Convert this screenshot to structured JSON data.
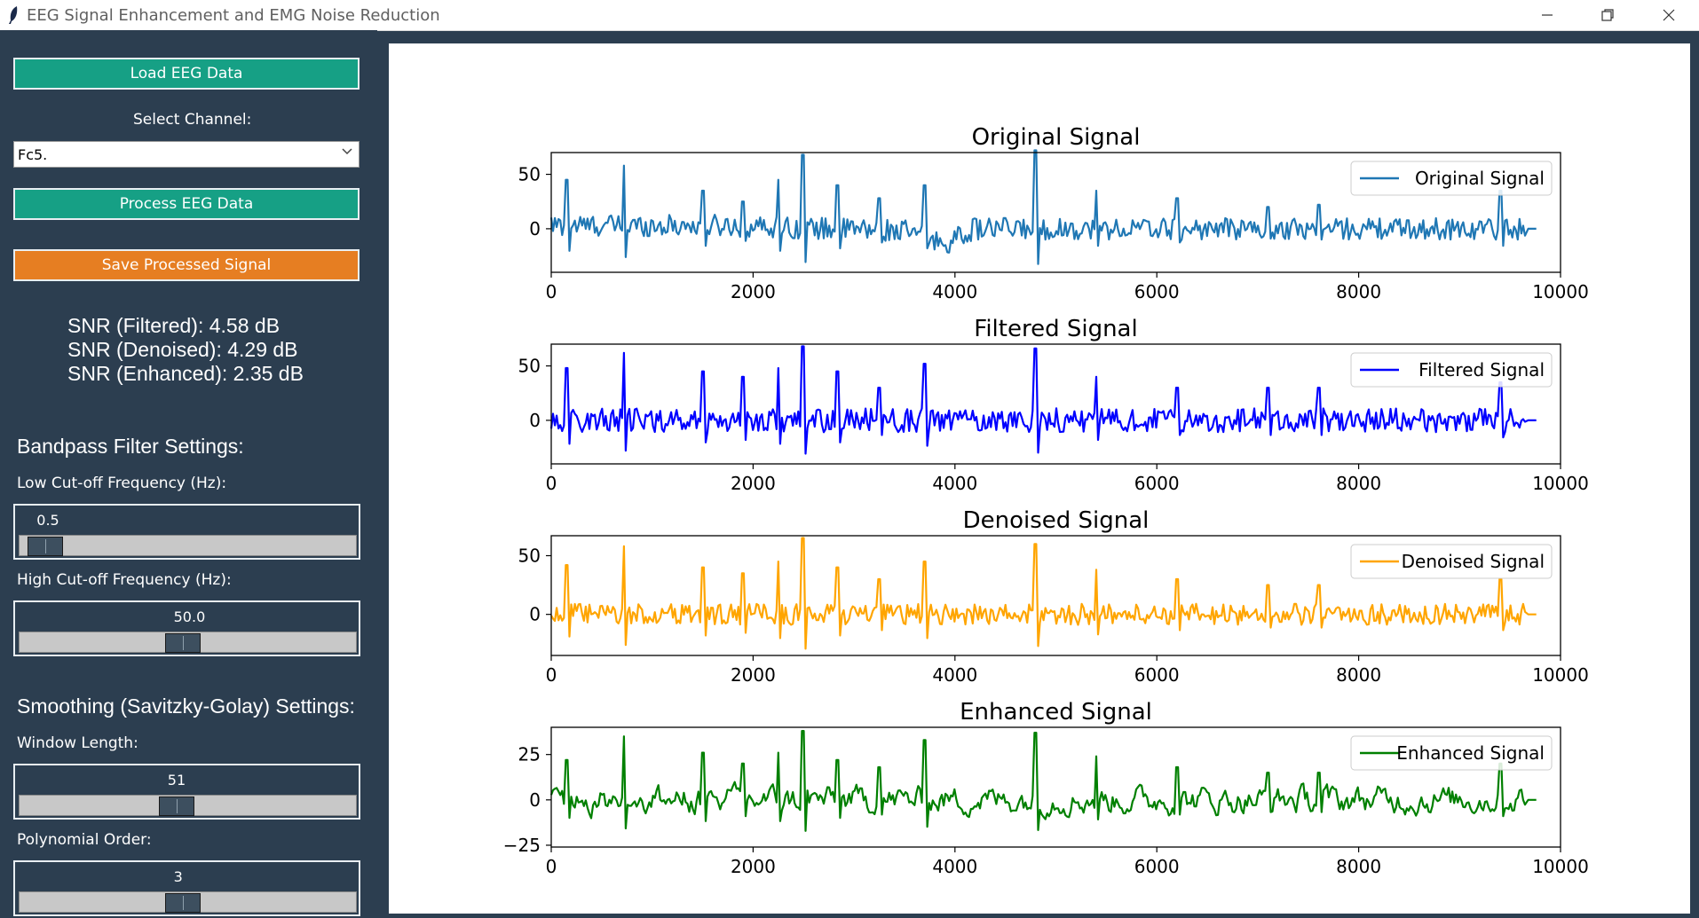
{
  "window": {
    "title": "EEG Signal Enhancement and EMG Noise Reduction",
    "controls": [
      "minimize-icon",
      "restore-icon",
      "close-icon"
    ]
  },
  "sidebar": {
    "load_button": "Load EEG Data",
    "select_channel_label": "Select Channel:",
    "channel_value": "Fc5.",
    "process_button": "Process EEG Data",
    "save_button": "Save Processed Signal",
    "snr": [
      "SNR (Filtered): 4.58 dB",
      "SNR (Denoised): 4.29 dB",
      "SNR (Enhanced): 2.35 dB"
    ],
    "bandpass_heading": "Bandpass Filter Settings:",
    "low_cutoff_label": "Low Cut-off Frequency (Hz):",
    "low_cutoff_value": "0.5",
    "low_cutoff_level": 0.03,
    "high_cutoff_label": "High Cut-off Frequency (Hz):",
    "high_cutoff_value": "50.0",
    "high_cutoff_level": 0.48,
    "smoothing_heading": "Smoothing (Savitzky-Golay) Settings:",
    "window_length_label": "Window Length:",
    "window_length_value": "51",
    "window_length_level": 0.46,
    "poly_order_label": "Polynomial Order:",
    "poly_order_value": "3",
    "poly_order_level": 0.48
  },
  "colors": {
    "sidebar_bg": "#2c3e50",
    "teal_button": "#16a085",
    "orange_button": "#e67e22"
  },
  "chart_data": [
    {
      "type": "line",
      "title": "Original Signal",
      "series": [
        {
          "name": "Original Signal",
          "color": "#1f77b4"
        }
      ],
      "xlim": [
        0,
        10000
      ],
      "ylim": [
        -40,
        70
      ],
      "x_ticks": [
        "0",
        "2000",
        "4000",
        "6000",
        "8000",
        "10000"
      ],
      "y_ticks": [
        "0",
        "50"
      ],
      "y_tick_values": [
        0,
        50
      ],
      "x_range": [
        0,
        9760
      ],
      "baseline": 0,
      "noise_amp": 10,
      "drift": [
        [
          0,
          3
        ],
        [
          1700,
          3
        ],
        [
          3500,
          -2
        ],
        [
          3900,
          -14
        ],
        [
          4200,
          0
        ],
        [
          9760,
          0
        ]
      ],
      "spikes": [
        [
          160,
          45
        ],
        [
          720,
          58
        ],
        [
          1500,
          35
        ],
        [
          1900,
          25
        ],
        [
          2250,
          45
        ],
        [
          2500,
          68
        ],
        [
          2830,
          40
        ],
        [
          3250,
          28
        ],
        [
          3700,
          40
        ],
        [
          4800,
          72
        ],
        [
          5400,
          35
        ],
        [
          6200,
          28
        ],
        [
          7100,
          20
        ],
        [
          7600,
          22
        ],
        [
          9400,
          35
        ]
      ],
      "legend": "upper right"
    },
    {
      "type": "line",
      "title": "Filtered Signal",
      "series": [
        {
          "name": "Filtered Signal",
          "color": "#0000ff"
        }
      ],
      "xlim": [
        0,
        10000
      ],
      "ylim": [
        -40,
        70
      ],
      "x_ticks": [
        "0",
        "2000",
        "4000",
        "6000",
        "8000",
        "10000"
      ],
      "y_ticks": [
        "0",
        "50"
      ],
      "y_tick_values": [
        0,
        50
      ],
      "x_range": [
        0,
        9760
      ],
      "baseline": 0,
      "noise_amp": 11,
      "drift": [
        [
          0,
          0
        ],
        [
          9760,
          0
        ]
      ],
      "spikes": [
        [
          160,
          48
        ],
        [
          720,
          62
        ],
        [
          1500,
          45
        ],
        [
          1900,
          40
        ],
        [
          2250,
          48
        ],
        [
          2500,
          68
        ],
        [
          2830,
          45
        ],
        [
          3250,
          30
        ],
        [
          3700,
          52
        ],
        [
          4800,
          66
        ],
        [
          5400,
          40
        ],
        [
          6200,
          30
        ],
        [
          7100,
          30
        ],
        [
          7600,
          30
        ],
        [
          9400,
          35
        ]
      ],
      "legend": "upper right"
    },
    {
      "type": "line",
      "title": "Denoised Signal",
      "series": [
        {
          "name": "Denoised Signal",
          "color": "#ffa500"
        }
      ],
      "xlim": [
        0,
        10000
      ],
      "ylim": [
        -35,
        67
      ],
      "x_ticks": [
        "0",
        "2000",
        "4000",
        "6000",
        "8000",
        "10000"
      ],
      "y_ticks": [
        "0",
        "50"
      ],
      "y_tick_values": [
        0,
        50
      ],
      "x_range": [
        0,
        9760
      ],
      "baseline": 0,
      "noise_amp": 9,
      "drift": [
        [
          0,
          0
        ],
        [
          9760,
          0
        ]
      ],
      "spikes": [
        [
          160,
          42
        ],
        [
          720,
          58
        ],
        [
          1500,
          40
        ],
        [
          1900,
          35
        ],
        [
          2250,
          45
        ],
        [
          2500,
          65
        ],
        [
          2830,
          40
        ],
        [
          3250,
          30
        ],
        [
          3700,
          45
        ],
        [
          4800,
          60
        ],
        [
          5400,
          38
        ],
        [
          6200,
          30
        ],
        [
          7100,
          25
        ],
        [
          7600,
          25
        ],
        [
          9400,
          30
        ]
      ],
      "legend": "upper right"
    },
    {
      "type": "line",
      "title": "Enhanced Signal",
      "series": [
        {
          "name": "Enhanced Signal",
          "color": "#008000"
        }
      ],
      "xlim": [
        0,
        10000
      ],
      "ylim": [
        -26,
        40
      ],
      "x_ticks": [
        "0",
        "2000",
        "4000",
        "6000",
        "8000",
        "10000"
      ],
      "y_ticks": [
        "−25",
        "0",
        "25"
      ],
      "y_tick_values": [
        -25,
        0,
        25
      ],
      "x_range": [
        0,
        9760
      ],
      "baseline": 0,
      "noise_amp": 8,
      "smooth": true,
      "drift": [
        [
          0,
          0
        ],
        [
          9760,
          0
        ]
      ],
      "spikes": [
        [
          160,
          22
        ],
        [
          720,
          35
        ],
        [
          1500,
          26
        ],
        [
          1900,
          20
        ],
        [
          2250,
          26
        ],
        [
          2500,
          38
        ],
        [
          2830,
          22
        ],
        [
          3250,
          18
        ],
        [
          3700,
          33
        ],
        [
          4800,
          37
        ],
        [
          5400,
          24
        ],
        [
          6200,
          18
        ],
        [
          7100,
          15
        ],
        [
          7600,
          15
        ],
        [
          9400,
          20
        ]
      ],
      "legend": "upper right"
    }
  ]
}
